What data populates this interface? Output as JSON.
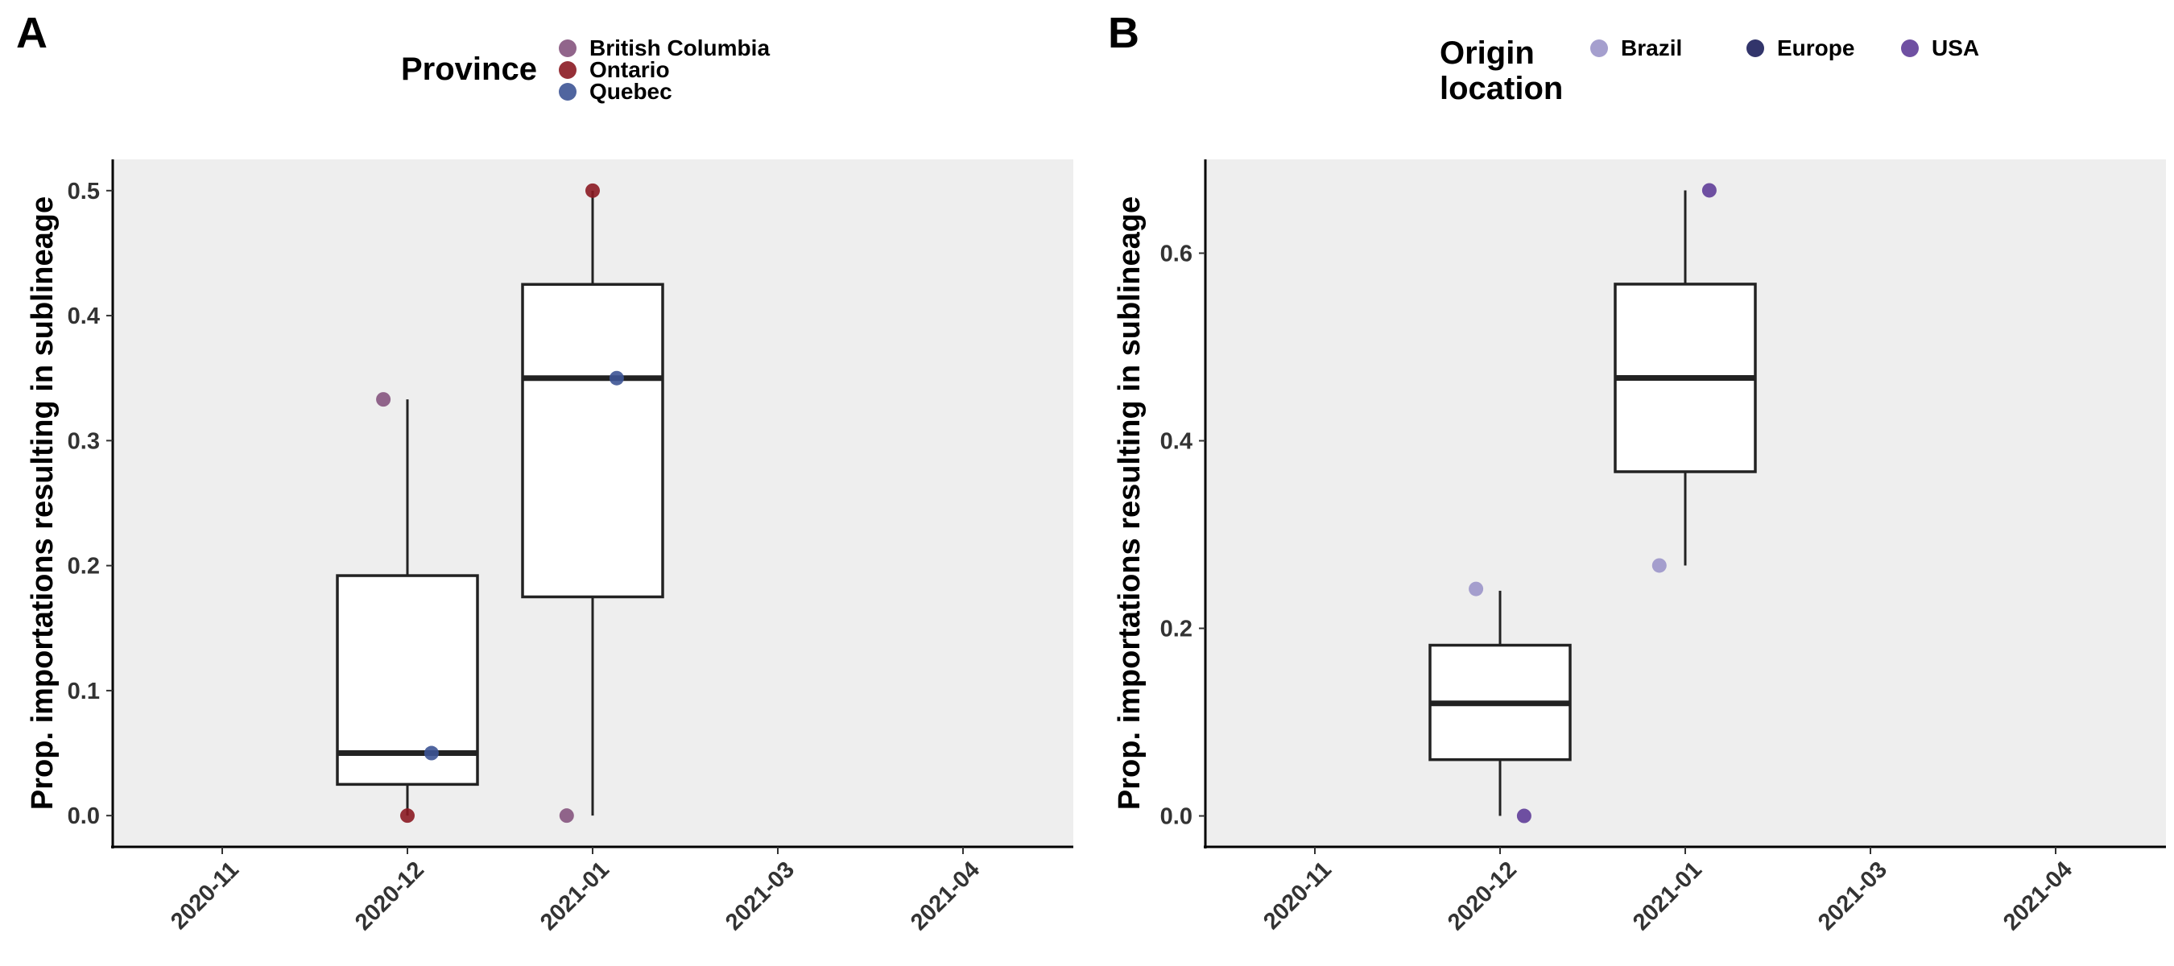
{
  "figure": {
    "panels": [
      {
        "letter": "A",
        "legend": {
          "title": "Province",
          "items": [
            {
              "label": "British Columbia",
              "color": "#85547e"
            },
            {
              "label": "Ontario",
              "color": "#8b1a22"
            },
            {
              "label": "Quebec",
              "color": "#3d5495"
            }
          ]
        }
      },
      {
        "letter": "B",
        "legend": {
          "title": "Origin\nlocation",
          "items": [
            {
              "label": "Brazil",
              "color": "#9b95c9"
            },
            {
              "label": "Europe",
              "color": "#1c1f5b"
            },
            {
              "label": "USA",
              "color": "#5f3d98"
            }
          ]
        }
      }
    ]
  },
  "chart_data": [
    {
      "type": "box",
      "ylabel": "Prop. importations resulting in sublineage",
      "categories": [
        "2020-11",
        "2020-12",
        "2021-01",
        "2021-03",
        "2021-04"
      ],
      "ylim": [
        -0.025,
        0.525
      ],
      "yticks": [
        0.0,
        0.1,
        0.2,
        0.3,
        0.4,
        0.5
      ],
      "ytick_labels": [
        "0.0",
        "0.1",
        "0.2",
        "0.3",
        "0.4",
        "0.5"
      ],
      "background": "#eeeeee",
      "grid": false,
      "boxes": [
        {
          "category": "2020-12",
          "whisker_low": 0.0,
          "q1": 0.025,
          "median": 0.05,
          "q3": 0.192,
          "whisker_high": 0.333
        },
        {
          "category": "2021-01",
          "whisker_low": 0.0,
          "q1": 0.175,
          "median": 0.35,
          "q3": 0.425,
          "whisker_high": 0.5
        }
      ],
      "points": [
        {
          "category": "2020-12",
          "series": "British Columbia",
          "y": 0.333,
          "jitter": -0.13
        },
        {
          "category": "2020-12",
          "series": "Ontario",
          "y": 0.0,
          "jitter": 0.0
        },
        {
          "category": "2020-12",
          "series": "Quebec",
          "y": 0.05,
          "jitter": 0.13
        },
        {
          "category": "2021-01",
          "series": "British Columbia",
          "y": 0.0,
          "jitter": -0.14
        },
        {
          "category": "2021-01",
          "series": "Ontario",
          "y": 0.5,
          "jitter": 0.0
        },
        {
          "category": "2021-01",
          "series": "Quebec",
          "y": 0.35,
          "jitter": 0.13
        }
      ],
      "series_colors": {
        "British Columbia": "#85547e",
        "Ontario": "#8b1a22",
        "Quebec": "#3d5495"
      }
    },
    {
      "type": "box",
      "ylabel": "Prop. importations resulting in sublineage",
      "categories": [
        "2020-11",
        "2020-12",
        "2021-01",
        "2021-03",
        "2021-04"
      ],
      "ylim": [
        -0.033,
        0.7
      ],
      "yticks": [
        0.0,
        0.2,
        0.4,
        0.6
      ],
      "ytick_labels": [
        "0.0",
        "0.2",
        "0.4",
        "0.6"
      ],
      "background": "#eeeeee",
      "grid": false,
      "boxes": [
        {
          "category": "2020-12",
          "whisker_low": 0.0,
          "q1": 0.06,
          "median": 0.12,
          "q3": 0.182,
          "whisker_high": 0.24
        },
        {
          "category": "2021-01",
          "whisker_low": 0.267,
          "q1": 0.367,
          "median": 0.467,
          "q3": 0.567,
          "whisker_high": 0.667
        }
      ],
      "points": [
        {
          "category": "2020-12",
          "series": "Brazil",
          "y": 0.242,
          "jitter": -0.13
        },
        {
          "category": "2020-12",
          "series": "USA",
          "y": 0.0,
          "jitter": 0.13
        },
        {
          "category": "2021-01",
          "series": "Brazil",
          "y": 0.267,
          "jitter": -0.14
        },
        {
          "category": "2021-01",
          "series": "USA",
          "y": 0.667,
          "jitter": 0.13
        }
      ],
      "series_colors": {
        "Brazil": "#9b95c9",
        "Europe": "#1c1f5b",
        "USA": "#5f3d98"
      }
    }
  ]
}
